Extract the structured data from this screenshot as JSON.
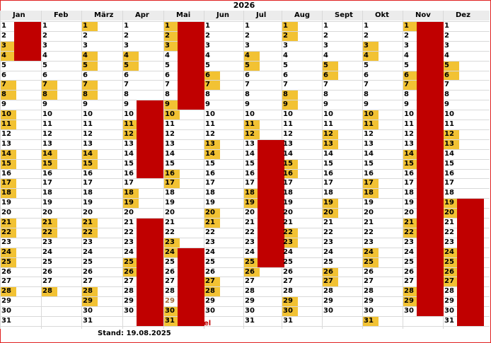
{
  "title": "2026",
  "stand": "Stand: 19.08.2025",
  "fragment": "el",
  "months": [
    {
      "label": "Jan",
      "days": 31,
      "hl": [
        3,
        4,
        7,
        8,
        10,
        11,
        14,
        15,
        17,
        18,
        21,
        22,
        24,
        25,
        28
      ]
    },
    {
      "label": "Feb",
      "days": 28,
      "hl": [
        7,
        8,
        14,
        15,
        21,
        22,
        28
      ]
    },
    {
      "label": "März",
      "days": 31,
      "hl": [
        1,
        4,
        5,
        7,
        8,
        14,
        15,
        21,
        22,
        28,
        29
      ]
    },
    {
      "label": "Apr",
      "days": 30,
      "hl": [
        4,
        5,
        11,
        12,
        18,
        19,
        25,
        26
      ]
    },
    {
      "label": "Mai",
      "days": 31,
      "hl": [
        1,
        2,
        3,
        9,
        10,
        16,
        17,
        23,
        24,
        30,
        31
      ]
    },
    {
      "label": "Jun",
      "days": 30,
      "hl": [
        6,
        7,
        13,
        14,
        20,
        21,
        27,
        28
      ]
    },
    {
      "label": "Jul",
      "days": 31,
      "hl": [
        4,
        5,
        11,
        12,
        18,
        19,
        25,
        26
      ]
    },
    {
      "label": "Aug",
      "days": 31,
      "hl": [
        1,
        2,
        8,
        9,
        15,
        16,
        22,
        23,
        29,
        30
      ]
    },
    {
      "label": "Sept",
      "days": 30,
      "hl": [
        5,
        6,
        12,
        13,
        19,
        20,
        26,
        27
      ]
    },
    {
      "label": "Okt",
      "days": 31,
      "hl": [
        3,
        4,
        10,
        11,
        17,
        18,
        24,
        25,
        31
      ]
    },
    {
      "label": "Nov",
      "days": 30,
      "hl": [
        1,
        6,
        7,
        14,
        15,
        21,
        22,
        28,
        29
      ]
    },
    {
      "label": "Dez",
      "days": 31,
      "hl": [
        5,
        6,
        12,
        13,
        19,
        20,
        24,
        25,
        26,
        27
      ]
    }
  ],
  "vacations": [
    {
      "month": 0,
      "from": 1,
      "to": 4
    },
    {
      "month": 3,
      "from": 9,
      "to": 16
    },
    {
      "month": 3,
      "from": 21,
      "to": 31
    },
    {
      "month": 4,
      "from": 1,
      "to": 9
    },
    {
      "month": 4,
      "from": 24,
      "to": 31
    },
    {
      "month": 6,
      "from": 13,
      "to": 25
    },
    {
      "month": 10,
      "from": 1,
      "to": 30
    },
    {
      "month": 11,
      "from": 19,
      "to": 31
    }
  ],
  "colors": {
    "vacation": "#c00000",
    "weekend": "#f2c233",
    "grid": "#d9d9d9",
    "frame": "#e02020"
  }
}
